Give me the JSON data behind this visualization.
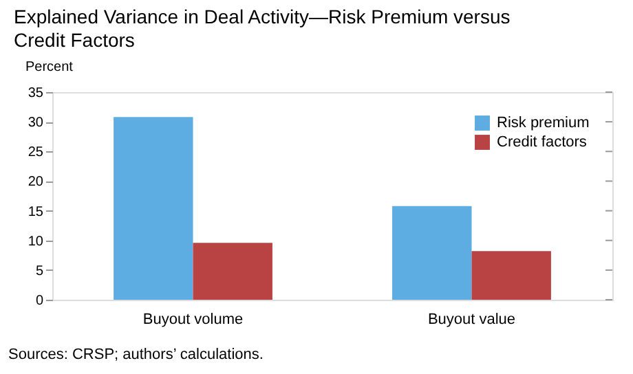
{
  "chart_data": {
    "type": "bar",
    "title": "Explained Variance in Deal Activity—Risk Premium versus Credit Factors",
    "ylabel": "Percent",
    "categories": [
      "Buyout volume",
      "Buyout value"
    ],
    "series": [
      {
        "name": "Risk premium",
        "color": "#5dade2",
        "values": [
          30.8,
          15.8
        ]
      },
      {
        "name": "Credit factors",
        "color": "#b94343",
        "values": [
          9.6,
          8.2
        ]
      }
    ],
    "ylim": [
      0,
      35
    ],
    "yticks": [
      0,
      5,
      10,
      15,
      20,
      25,
      30,
      35
    ],
    "grid": false,
    "legend": "top right",
    "annotations": [
      "Sources: CRSP; authors’ calculations."
    ]
  }
}
